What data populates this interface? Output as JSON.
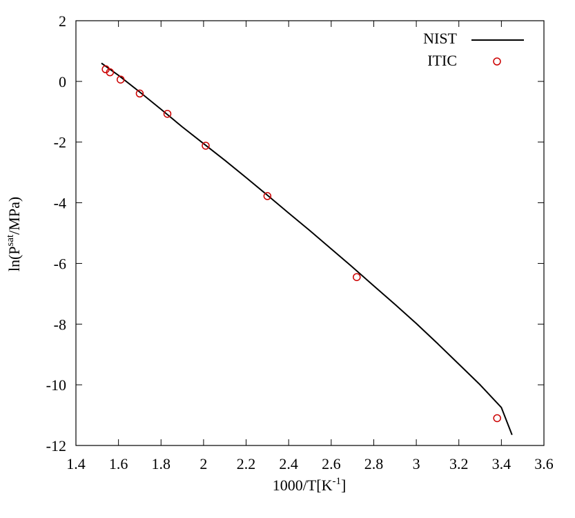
{
  "chart_data": {
    "type": "line",
    "xlabel": "1000/T[K",
    "xlabel_sup": "-1",
    "xlabel_end": "]",
    "ylabel": "ln(P",
    "ylabel_sup": "sat",
    "ylabel_end": "/MPa)",
    "xlim": [
      1.4,
      3.6
    ],
    "ylim": [
      -12,
      2
    ],
    "xticks": [
      1.4,
      1.6,
      1.8,
      2,
      2.2,
      2.4,
      2.6,
      2.8,
      3,
      3.2,
      3.4,
      3.6
    ],
    "xtick_labels": [
      "1.4",
      "1.6",
      "1.8",
      "2",
      "2.2",
      "2.4",
      "2.6",
      "2.8",
      "3",
      "3.2",
      "3.4",
      "3.6"
    ],
    "yticks": [
      2,
      0,
      -2,
      -4,
      -6,
      -8,
      -10,
      -12
    ],
    "ytick_labels": [
      "2",
      "0",
      "-2",
      "-4",
      "-6",
      "-8",
      "-10",
      "-12"
    ],
    "grid": false,
    "legend_position": "top-right",
    "colors": {
      "nist": "#000000",
      "itic": "#cc0000"
    },
    "series": [
      {
        "name": "NIST",
        "style": "line",
        "x": [
          1.52,
          1.6,
          1.7,
          1.8,
          1.9,
          2.0,
          2.1,
          2.2,
          2.3,
          2.4,
          2.5,
          2.6,
          2.7,
          2.8,
          2.9,
          3.0,
          3.1,
          3.2,
          3.3,
          3.4,
          3.45
        ],
        "y": [
          0.6,
          0.2,
          -0.35,
          -0.92,
          -1.5,
          -2.05,
          -2.6,
          -3.17,
          -3.75,
          -4.34,
          -4.92,
          -5.52,
          -6.12,
          -6.74,
          -7.35,
          -7.98,
          -8.64,
          -9.32,
          -10.0,
          -10.75,
          -11.65
        ]
      },
      {
        "name": "ITIC",
        "style": "scatter",
        "x": [
          1.54,
          1.56,
          1.61,
          1.7,
          1.83,
          2.01,
          2.3,
          2.72,
          3.38
        ],
        "y": [
          0.4,
          0.3,
          0.06,
          -0.4,
          -1.07,
          -2.12,
          -3.78,
          -6.45,
          -11.1
        ]
      }
    ]
  }
}
